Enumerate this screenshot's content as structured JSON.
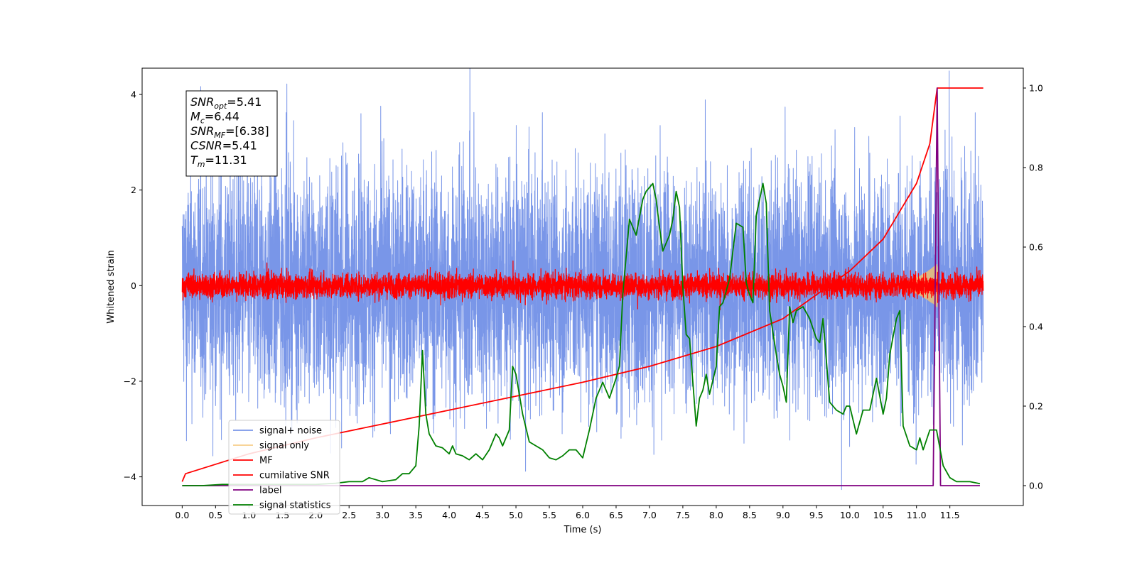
{
  "chart_data": {
    "type": "line",
    "xlabel": "Time (s)",
    "ylabel_left": "Whitened strain",
    "ylabel_right": "",
    "xlim": [
      -0.6,
      12.6
    ],
    "ylim_left": [
      -4.6,
      4.55
    ],
    "ylim_right": [
      -0.05,
      1.05
    ],
    "x_ticks": [
      "0.0",
      "0.5",
      "1.0",
      "1.5",
      "2.0",
      "2.5",
      "3.0",
      "3.5",
      "4.0",
      "4.5",
      "5.0",
      "5.5",
      "6.0",
      "6.5",
      "7.0",
      "7.5",
      "8.0",
      "8.5",
      "9.0",
      "9.5",
      "10.0",
      "10.5",
      "11.0",
      "11.5"
    ],
    "y_left_ticks": [
      "4",
      "2",
      "0",
      "−2",
      "−4"
    ],
    "y_right_ticks": [
      "1.0",
      "0.8",
      "0.6",
      "0.4",
      "0.2",
      "0.0"
    ],
    "grid": false,
    "legend_position": "lower-left",
    "info_box": [
      {
        "base": "SNR",
        "sub": "opt",
        "value": "=5.41"
      },
      {
        "base": "M",
        "sub": "c",
        "value": "=6.44"
      },
      {
        "base": "SNR",
        "sub": "MF",
        "value": "=[6.38]"
      },
      {
        "base": "CSNR",
        "sub": "",
        "value": "=5.41"
      },
      {
        "base": "T",
        "sub": "m",
        "value": "=11.31"
      }
    ],
    "series": [
      {
        "name": "signal+ noise",
        "color": "#6a8be6",
        "axis": "left",
        "kind": "noise",
        "amplitude": 1.25,
        "x_range": [
          0,
          12
        ]
      },
      {
        "name": "signal only",
        "color": "#f5c26b",
        "axis": "left",
        "kind": "chirp",
        "merger_time": 11.31
      },
      {
        "name": "MF",
        "color": "#ff0000",
        "axis": "left",
        "kind": "noise",
        "amplitude": 0.13,
        "x_range": [
          0,
          12
        ]
      },
      {
        "name": "cumilative SNR",
        "color": "#ff0000",
        "axis": "right",
        "x": [
          0,
          0.05,
          1.0,
          2.0,
          3.0,
          4.0,
          5.0,
          6.0,
          7.0,
          8.0,
          9.0,
          10.0,
          10.5,
          11.0,
          11.2,
          11.31,
          11.5,
          12.0
        ],
        "y": [
          0.01,
          0.03,
          0.08,
          0.12,
          0.155,
          0.19,
          0.225,
          0.26,
          0.3,
          0.35,
          0.42,
          0.54,
          0.62,
          0.76,
          0.86,
          1.0,
          1.0,
          1.0
        ]
      },
      {
        "name": "label",
        "color": "#800080",
        "axis": "right",
        "x": [
          0,
          11.25,
          11.31,
          11.36,
          11.95
        ],
        "y": [
          0,
          0,
          1.0,
          0,
          0
        ]
      },
      {
        "name": "signal statistics",
        "color": "#008000",
        "axis": "right",
        "x": [
          0,
          0.3,
          0.6,
          1.0,
          1.5,
          2.0,
          2.3,
          2.5,
          2.7,
          2.8,
          3.0,
          3.2,
          3.3,
          3.4,
          3.5,
          3.55,
          3.6,
          3.65,
          3.7,
          3.8,
          3.9,
          4.0,
          4.05,
          4.1,
          4.2,
          4.3,
          4.4,
          4.5,
          4.6,
          4.7,
          4.75,
          4.8,
          4.9,
          4.95,
          5.0,
          5.1,
          5.2,
          5.3,
          5.4,
          5.5,
          5.6,
          5.7,
          5.8,
          5.9,
          6.0,
          6.1,
          6.2,
          6.3,
          6.4,
          6.5,
          6.55,
          6.6,
          6.7,
          6.8,
          6.9,
          6.95,
          7.0,
          7.05,
          7.1,
          7.15,
          7.2,
          7.3,
          7.35,
          7.4,
          7.45,
          7.5,
          7.55,
          7.6,
          7.7,
          7.75,
          7.8,
          7.85,
          7.9,
          8.0,
          8.05,
          8.1,
          8.2,
          8.3,
          8.4,
          8.45,
          8.5,
          8.55,
          8.6,
          8.7,
          8.75,
          8.8,
          8.9,
          8.95,
          9.0,
          9.05,
          9.1,
          9.15,
          9.2,
          9.3,
          9.4,
          9.5,
          9.55,
          9.6,
          9.7,
          9.8,
          9.9,
          9.95,
          10.0,
          10.1,
          10.2,
          10.3,
          10.4,
          10.5,
          10.55,
          10.6,
          10.7,
          10.75,
          10.8,
          10.9,
          11.0,
          11.05,
          11.1,
          11.2,
          11.3,
          11.4,
          11.5,
          11.6,
          11.8,
          11.95
        ],
        "y": [
          0.0,
          0.0,
          0.003,
          0.003,
          0.003,
          0.003,
          0.006,
          0.01,
          0.01,
          0.02,
          0.01,
          0.015,
          0.03,
          0.03,
          0.05,
          0.15,
          0.34,
          0.18,
          0.13,
          0.1,
          0.095,
          0.08,
          0.1,
          0.08,
          0.075,
          0.065,
          0.08,
          0.065,
          0.09,
          0.13,
          0.12,
          0.1,
          0.14,
          0.3,
          0.28,
          0.18,
          0.11,
          0.1,
          0.09,
          0.07,
          0.065,
          0.075,
          0.09,
          0.09,
          0.07,
          0.14,
          0.22,
          0.26,
          0.22,
          0.27,
          0.3,
          0.48,
          0.67,
          0.63,
          0.72,
          0.74,
          0.75,
          0.76,
          0.72,
          0.65,
          0.59,
          0.63,
          0.67,
          0.74,
          0.7,
          0.5,
          0.38,
          0.37,
          0.15,
          0.22,
          0.24,
          0.28,
          0.23,
          0.3,
          0.45,
          0.46,
          0.52,
          0.66,
          0.65,
          0.51,
          0.48,
          0.46,
          0.68,
          0.76,
          0.71,
          0.44,
          0.33,
          0.28,
          0.25,
          0.21,
          0.45,
          0.41,
          0.44,
          0.45,
          0.42,
          0.37,
          0.36,
          0.42,
          0.21,
          0.19,
          0.18,
          0.2,
          0.2,
          0.13,
          0.19,
          0.19,
          0.27,
          0.18,
          0.22,
          0.33,
          0.42,
          0.44,
          0.15,
          0.1,
          0.09,
          0.12,
          0.09,
          0.14,
          0.14,
          0.05,
          0.02,
          0.01,
          0.01,
          0.005
        ]
      }
    ]
  }
}
